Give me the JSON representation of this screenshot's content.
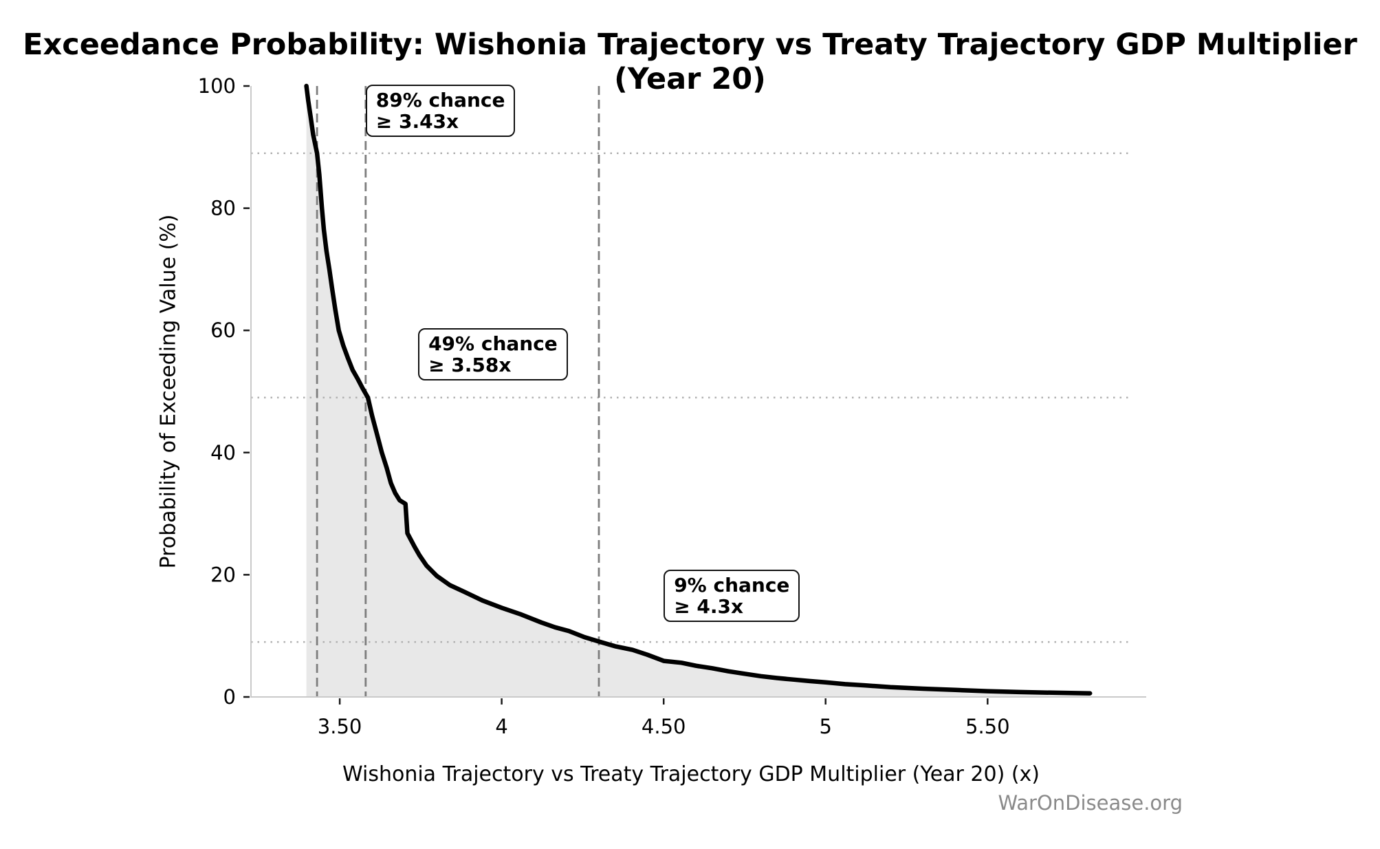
{
  "title": "Exceedance Probability: Wishonia Trajectory vs Treaty Trajectory GDP Multiplier (Year 20)",
  "watermark": "WarOnDisease.org",
  "chart_data": {
    "type": "area",
    "title": "Exceedance Probability: Wishonia Trajectory vs Treaty Trajectory GDP Multiplier (Year 20)",
    "xlabel": "Wishonia Trajectory vs Treaty Trajectory GDP Multiplier (Year 20) (x)",
    "ylabel": "Probability of Exceeding Value (%)",
    "xlim": [
      3.226,
      5.943
    ],
    "ylim": [
      0,
      100
    ],
    "grid": "dotted horizontal lines only at highlighted probabilities",
    "legend": "none",
    "x_ticks": [
      {
        "v": 3.5,
        "label": "3.50"
      },
      {
        "v": 4.0,
        "label": "4"
      },
      {
        "v": 4.5,
        "label": "4.50"
      },
      {
        "v": 5.0,
        "label": "5"
      },
      {
        "v": 5.5,
        "label": "5.50"
      }
    ],
    "y_ticks": [
      {
        "v": 0,
        "label": "0"
      },
      {
        "v": 20,
        "label": "20"
      },
      {
        "v": 40,
        "label": "40"
      },
      {
        "v": 60,
        "label": "60"
      },
      {
        "v": 80,
        "label": "80"
      },
      {
        "v": 100,
        "label": "100"
      }
    ],
    "series": [
      {
        "name": "exceedance-probability-curve",
        "points": [
          [
            3.397,
            100
          ],
          [
            3.403,
            97.5
          ],
          [
            3.41,
            95
          ],
          [
            3.418,
            92
          ],
          [
            3.43,
            89
          ],
          [
            3.437,
            85.5
          ],
          [
            3.445,
            80
          ],
          [
            3.451,
            76.5
          ],
          [
            3.459,
            73
          ],
          [
            3.468,
            70
          ],
          [
            3.476,
            67
          ],
          [
            3.486,
            63.5
          ],
          [
            3.497,
            60
          ],
          [
            3.511,
            57.5
          ],
          [
            3.525,
            55.5
          ],
          [
            3.54,
            53.5
          ],
          [
            3.556,
            52
          ],
          [
            3.571,
            50.5
          ],
          [
            3.587,
            49
          ],
          [
            3.6,
            46
          ],
          [
            3.615,
            43
          ],
          [
            3.63,
            40
          ],
          [
            3.645,
            37.5
          ],
          [
            3.658,
            35
          ],
          [
            3.671,
            33.4
          ],
          [
            3.685,
            32.2
          ],
          [
            3.703,
            31.6
          ],
          [
            3.709,
            26.8
          ],
          [
            3.72,
            25.7
          ],
          [
            3.731,
            24.6
          ],
          [
            3.746,
            23.2
          ],
          [
            3.768,
            21.5
          ],
          [
            3.8,
            19.8
          ],
          [
            3.84,
            18.3
          ],
          [
            3.885,
            17.2
          ],
          [
            3.94,
            15.8
          ],
          [
            4.0,
            14.6
          ],
          [
            4.06,
            13.5
          ],
          [
            4.122,
            12.2
          ],
          [
            4.165,
            11.4
          ],
          [
            4.207,
            10.8
          ],
          [
            4.255,
            9.8
          ],
          [
            4.305,
            9.0
          ],
          [
            4.35,
            8.3
          ],
          [
            4.404,
            7.7
          ],
          [
            4.45,
            6.9
          ],
          [
            4.5,
            5.9
          ],
          [
            4.555,
            5.6
          ],
          [
            4.6,
            5.1
          ],
          [
            4.65,
            4.7
          ],
          [
            4.7,
            4.2
          ],
          [
            4.75,
            3.8
          ],
          [
            4.8,
            3.4
          ],
          [
            4.85,
            3.1
          ],
          [
            4.9,
            2.85
          ],
          [
            4.95,
            2.6
          ],
          [
            5.0,
            2.4
          ],
          [
            5.06,
            2.1
          ],
          [
            5.12,
            1.9
          ],
          [
            5.2,
            1.6
          ],
          [
            5.3,
            1.35
          ],
          [
            5.4,
            1.15
          ],
          [
            5.5,
            0.95
          ],
          [
            5.6,
            0.8
          ],
          [
            5.7,
            0.7
          ],
          [
            5.816,
            0.6
          ]
        ]
      }
    ],
    "reference_lines": {
      "vertical_dashed_x": [
        3.43,
        3.58,
        4.3
      ],
      "horizontal_dotted_pct": [
        89,
        49,
        9
      ]
    },
    "annotations": [
      {
        "line1": "89% chance",
        "line2": "≥ 3.43x",
        "x": 3.58,
        "top_pct": 100.2
      },
      {
        "line1": "49% chance",
        "line2": "≥ 3.58x",
        "x": 3.742,
        "top_pct": 60.4
      },
      {
        "line1": "9% chance",
        "line2": "≥ 4.3x",
        "x": 4.5,
        "top_pct": 20.8
      }
    ],
    "colors": {
      "curve": "#000000",
      "fill": "#e8e8e8",
      "dashed_line": "#7d7d7d",
      "dotted_line": "#b0b0b0",
      "spine": "#c9c9c9",
      "tick": "#1a1a1a",
      "text": "#000000",
      "watermark": "#8a8a8a"
    }
  }
}
